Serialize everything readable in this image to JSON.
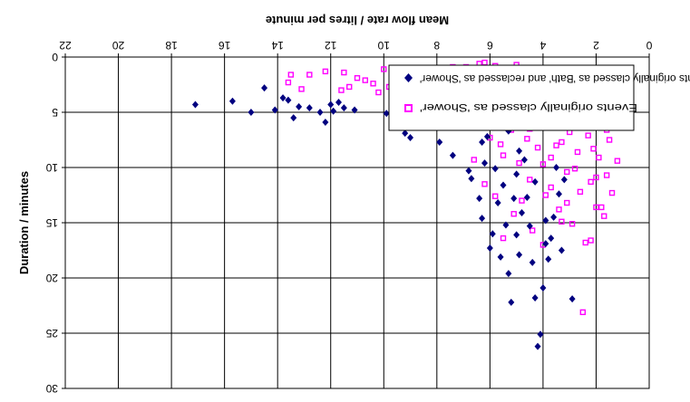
{
  "chart_data": {
    "type": "scatter",
    "orientation": "rotated 180 degrees (image is upside-down)",
    "title": "",
    "xlabel": "Mean flow rate / litres per minute",
    "ylabel": "Duration / minutes",
    "xlim": [
      0,
      22
    ],
    "ylim": [
      0,
      30
    ],
    "x_ticks": [
      "0",
      "2",
      "4",
      "6",
      "8",
      "10",
      "12",
      "14",
      "16",
      "18",
      "20",
      "22"
    ],
    "y_ticks": [
      "0",
      "5",
      "10",
      "15",
      "20",
      "25",
      "30"
    ],
    "y_inverted": true,
    "grid": true,
    "legend_position": "bottom-right",
    "series": [
      {
        "name": "Events originally classed as 'Bath' and reclassed as 'Shower'",
        "marker": "diamond",
        "color": "#000080",
        "points": [
          [
            17.1,
            4.3
          ],
          [
            15.7,
            4.0
          ],
          [
            15.0,
            5.0
          ],
          [
            14.5,
            2.8
          ],
          [
            14.1,
            4.8
          ],
          [
            13.8,
            3.7
          ],
          [
            13.6,
            3.9
          ],
          [
            13.4,
            5.5
          ],
          [
            13.2,
            4.5
          ],
          [
            12.8,
            4.6
          ],
          [
            12.4,
            5.0
          ],
          [
            12.2,
            5.9
          ],
          [
            12.0,
            4.3
          ],
          [
            11.9,
            4.9
          ],
          [
            11.7,
            4.1
          ],
          [
            11.5,
            4.6
          ],
          [
            11.1,
            4.8
          ],
          [
            9.9,
            5.1
          ],
          [
            9.6,
            5.5
          ],
          [
            9.3,
            4.6
          ],
          [
            9.2,
            6.9
          ],
          [
            9.0,
            7.3
          ],
          [
            8.7,
            5.4
          ],
          [
            8.2,
            6.3
          ],
          [
            8.0,
            5.2
          ],
          [
            7.9,
            7.7
          ],
          [
            7.6,
            5.5
          ],
          [
            7.4,
            8.9
          ],
          [
            7.2,
            3.3
          ],
          [
            7.0,
            2.7
          ],
          [
            6.9,
            6.1
          ],
          [
            6.8,
            10.3
          ],
          [
            6.7,
            11.0
          ],
          [
            6.6,
            4.8
          ],
          [
            6.5,
            5.3
          ],
          [
            6.4,
            12.8
          ],
          [
            6.3,
            14.6
          ],
          [
            6.2,
            9.6
          ],
          [
            6.1,
            7.2
          ],
          [
            6.0,
            17.3
          ],
          [
            5.9,
            16.0
          ],
          [
            5.8,
            10.1
          ],
          [
            5.7,
            13.2
          ],
          [
            5.6,
            18.1
          ],
          [
            5.5,
            11.6
          ],
          [
            5.4,
            15.2
          ],
          [
            5.3,
            19.6
          ],
          [
            5.2,
            22.2
          ],
          [
            5.1,
            12.8
          ],
          [
            5.0,
            16.1
          ],
          [
            4.9,
            17.9
          ],
          [
            4.8,
            14.1
          ],
          [
            4.7,
            9.3
          ],
          [
            4.6,
            12.7
          ],
          [
            4.5,
            15.3
          ],
          [
            4.4,
            18.6
          ],
          [
            4.3,
            21.8
          ],
          [
            4.2,
            26.2
          ],
          [
            4.1,
            25.1
          ],
          [
            4.0,
            20.9
          ],
          [
            3.9,
            14.8
          ],
          [
            3.8,
            18.3
          ],
          [
            3.7,
            16.4
          ],
          [
            3.6,
            14.5
          ],
          [
            3.5,
            10.0
          ],
          [
            3.4,
            12.4
          ],
          [
            3.3,
            17.5
          ],
          [
            3.2,
            11.1
          ],
          [
            2.9,
            21.9
          ],
          [
            4.3,
            11.3
          ],
          [
            4.9,
            8.5
          ],
          [
            5.3,
            6.7
          ],
          [
            6.3,
            7.7
          ],
          [
            5.0,
            10.6
          ],
          [
            3.9,
            16.9
          ]
        ]
      },
      {
        "name": "Events originally classed as 'Shower'",
        "marker": "square",
        "color": "#ff00ff",
        "points": [
          [
            13.5,
            1.6
          ],
          [
            12.8,
            1.6
          ],
          [
            11.5,
            1.4
          ],
          [
            11.3,
            2.7
          ],
          [
            11.0,
            1.9
          ],
          [
            10.7,
            2.1
          ],
          [
            10.2,
            3.2
          ],
          [
            10.0,
            1.1
          ],
          [
            9.8,
            2.7
          ],
          [
            9.5,
            3.8
          ],
          [
            9.3,
            2.2
          ],
          [
            9.0,
            3.2
          ],
          [
            8.8,
            1.5
          ],
          [
            8.6,
            2.9
          ],
          [
            8.3,
            3.6
          ],
          [
            8.1,
            1.8
          ],
          [
            7.9,
            4.2
          ],
          [
            7.8,
            2.5
          ],
          [
            7.6,
            1.0
          ],
          [
            7.4,
            3.4
          ],
          [
            7.2,
            2.1
          ],
          [
            7.0,
            5.7
          ],
          [
            6.9,
            0.9
          ],
          [
            6.8,
            4.4
          ],
          [
            6.7,
            1.8
          ],
          [
            6.6,
            3.1
          ],
          [
            6.5,
            6.4
          ],
          [
            6.4,
            0.6
          ],
          [
            6.3,
            2.4
          ],
          [
            6.2,
            4.9
          ],
          [
            6.1,
            1.5
          ],
          [
            6.0,
            7.3
          ],
          [
            5.9,
            3.6
          ],
          [
            5.8,
            0.8
          ],
          [
            5.7,
            5.5
          ],
          [
            5.6,
            2.7
          ],
          [
            5.5,
            8.9
          ],
          [
            5.4,
            1.9
          ],
          [
            5.3,
            4.2
          ],
          [
            5.2,
            6.6
          ],
          [
            5.1,
            1.1
          ],
          [
            5.0,
            3.3
          ],
          [
            4.9,
            9.6
          ],
          [
            4.8,
            5.1
          ],
          [
            4.7,
            2.2
          ],
          [
            4.6,
            7.4
          ],
          [
            4.5,
            11.1
          ],
          [
            4.4,
            1.4
          ],
          [
            4.3,
            4.6
          ],
          [
            4.2,
            8.2
          ],
          [
            4.1,
            2.9
          ],
          [
            4.0,
            6.0
          ],
          [
            3.9,
            12.5
          ],
          [
            3.8,
            3.8
          ],
          [
            3.7,
            9.1
          ],
          [
            3.6,
            1.9
          ],
          [
            3.5,
            5.4
          ],
          [
            3.4,
            13.8
          ],
          [
            3.3,
            7.7
          ],
          [
            3.2,
            3.1
          ],
          [
            3.1,
            10.4
          ],
          [
            3.0,
            5.9
          ],
          [
            2.9,
            15.1
          ],
          [
            2.8,
            2.4
          ],
          [
            2.7,
            8.6
          ],
          [
            2.6,
            12.2
          ],
          [
            2.5,
            4.9
          ],
          [
            2.4,
            16.8
          ],
          [
            2.3,
            7.1
          ],
          [
            2.2,
            11.3
          ],
          [
            2.1,
            3.5
          ],
          [
            2.0,
            13.6
          ],
          [
            1.9,
            9.1
          ],
          [
            1.8,
            5.8
          ],
          [
            1.7,
            14.4
          ],
          [
            1.6,
            10.7
          ],
          [
            1.5,
            7.5
          ],
          [
            1.4,
            12.3
          ],
          [
            1.3,
            6.1
          ],
          [
            1.2,
            9.4
          ],
          [
            2.5,
            23.1
          ],
          [
            2.2,
            16.6
          ],
          [
            3.3,
            14.9
          ],
          [
            2.0,
            10.9
          ],
          [
            1.8,
            13.6
          ],
          [
            5.8,
            12.6
          ],
          [
            5.1,
            14.2
          ],
          [
            4.4,
            15.7
          ],
          [
            6.6,
            9.3
          ],
          [
            3.7,
            11.8
          ],
          [
            4.8,
            13.0
          ],
          [
            5.5,
            16.4
          ],
          [
            4.0,
            17.0
          ],
          [
            6.2,
            11.5
          ],
          [
            3.1,
            13.2
          ],
          [
            2.8,
            10.1
          ],
          [
            1.6,
            6.6
          ],
          [
            1.4,
            4.4
          ],
          [
            1.9,
            3.3
          ],
          [
            2.3,
            2.6
          ],
          [
            2.7,
            4.0
          ],
          [
            3.0,
            2.1
          ],
          [
            3.4,
            1.8
          ],
          [
            3.8,
            3.0
          ],
          [
            4.2,
            2.4
          ],
          [
            4.6,
            1.7
          ],
          [
            5.0,
            0.7
          ],
          [
            5.4,
            3.6
          ],
          [
            5.8,
            2.3
          ],
          [
            6.2,
            0.5
          ],
          [
            6.6,
            1.2
          ],
          [
            7.0,
            3.2
          ],
          [
            7.4,
            0.9
          ],
          [
            7.8,
            1.6
          ],
          [
            8.2,
            2.1
          ],
          [
            8.6,
            4.3
          ],
          [
            9.1,
            1.3
          ],
          [
            9.6,
            1.9
          ],
          [
            10.4,
            2.4
          ],
          [
            11.6,
            3.0
          ],
          [
            12.2,
            1.3
          ],
          [
            13.1,
            2.9
          ],
          [
            13.6,
            2.3
          ],
          [
            3.5,
            8.0
          ],
          [
            4.5,
            6.5
          ],
          [
            5.2,
            5.0
          ],
          [
            3.0,
            6.8
          ],
          [
            2.1,
            8.3
          ],
          [
            4.0,
            9.7
          ],
          [
            5.6,
            7.9
          ]
        ]
      }
    ]
  }
}
